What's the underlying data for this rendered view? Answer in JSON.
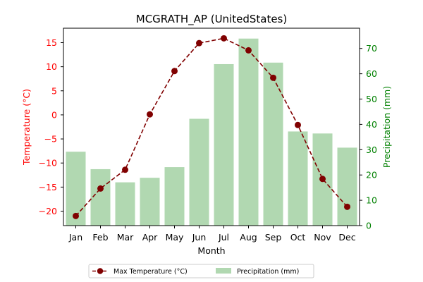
{
  "chart_data": {
    "type": "bar+line",
    "title": "MCGRATH_AP (UnitedStates)",
    "xlabel": "Month",
    "categories": [
      "Jan",
      "Feb",
      "Mar",
      "Apr",
      "May",
      "Jun",
      "Jul",
      "Aug",
      "Sep",
      "Oct",
      "Nov",
      "Dec"
    ],
    "y_left": {
      "label": "Temperature (°C)",
      "ylim": [
        -23,
        18
      ],
      "ticks": [
        -20,
        -15,
        -10,
        -5,
        0,
        5,
        10,
        15
      ],
      "color": "#ff0000"
    },
    "y_right": {
      "label": "Precipitation (mm)",
      "ylim": [
        0,
        78
      ],
      "ticks": [
        0,
        10,
        20,
        30,
        40,
        50,
        60,
        70
      ],
      "color": "#008000"
    },
    "series": [
      {
        "name": "Max Temperature (°C)",
        "type": "line",
        "axis": "left",
        "color": "#800000",
        "style": "dashed",
        "marker": "circle",
        "values": [
          -21.0,
          -15.3,
          -11.4,
          0.1,
          9.1,
          14.9,
          15.9,
          13.4,
          7.7,
          -2.1,
          -13.3,
          -19.1
        ]
      },
      {
        "name": "Precipitation (mm)",
        "type": "bar",
        "axis": "right",
        "color": "#b1d8b1",
        "values": [
          29.2,
          22.3,
          17.1,
          18.9,
          23.1,
          42.2,
          63.8,
          73.9,
          64.4,
          37.2,
          36.4,
          30.8
        ]
      }
    ],
    "legend_position": "bottom-center",
    "grid": false
  }
}
